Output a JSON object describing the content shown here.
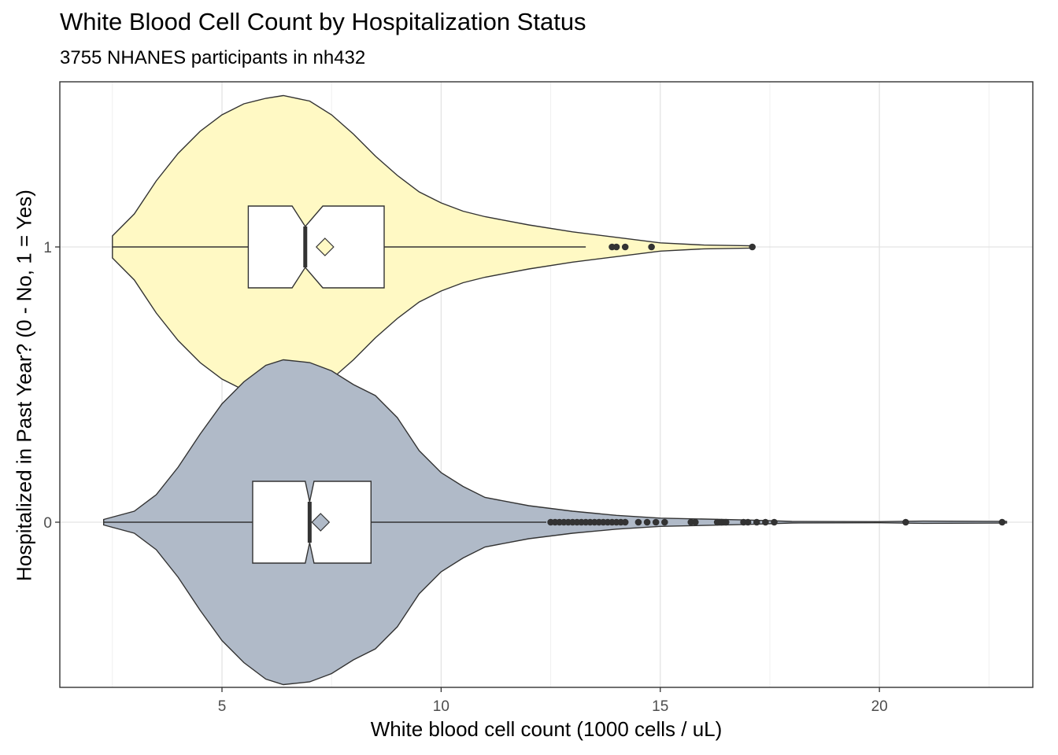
{
  "chart_data": {
    "type": "violin",
    "title": "White Blood Cell Count by Hospitalization Status",
    "subtitle": "3755 NHANES participants in nh432",
    "xlabel": "White blood cell count (1000 cells / uL)",
    "ylabel": "Hospitalized in Past Year? (0 - No, 1 = Yes)",
    "xlim": [
      1.3,
      23.5
    ],
    "ylim": [
      -0.6,
      1.6
    ],
    "xticks": [
      5,
      10,
      15,
      20
    ],
    "yticks": [
      0,
      1
    ],
    "grid": true,
    "legend": "none",
    "groups": [
      {
        "category": "1",
        "y": 1,
        "fill": "#FFF9C4",
        "violin": [
          [
            2.5,
            0.04
          ],
          [
            3.0,
            0.12
          ],
          [
            3.5,
            0.24
          ],
          [
            4.0,
            0.34
          ],
          [
            4.5,
            0.42
          ],
          [
            5.0,
            0.48
          ],
          [
            5.5,
            0.52
          ],
          [
            6.0,
            0.54
          ],
          [
            6.4,
            0.55
          ],
          [
            7.0,
            0.53
          ],
          [
            7.5,
            0.48
          ],
          [
            8.0,
            0.41
          ],
          [
            8.5,
            0.33
          ],
          [
            9.0,
            0.26
          ],
          [
            9.5,
            0.2
          ],
          [
            10.0,
            0.16
          ],
          [
            10.5,
            0.13
          ],
          [
            11.0,
            0.11
          ],
          [
            12.0,
            0.08
          ],
          [
            13.0,
            0.055
          ],
          [
            14.0,
            0.035
          ],
          [
            15.0,
            0.015
          ],
          [
            16.0,
            0.007
          ],
          [
            17.1,
            0.004
          ]
        ],
        "q1": 5.6,
        "median": 6.9,
        "q3": 8.7,
        "notch": [
          6.6,
          7.3
        ],
        "mean": 7.35,
        "whisker_low": 2.5,
        "whisker_high": 13.3,
        "outliers": [
          13.9,
          14.0,
          14.2,
          14.8,
          17.1
        ]
      },
      {
        "category": "0",
        "y": 0,
        "fill": "#B0BAC8",
        "violin": [
          [
            2.3,
            0.01
          ],
          [
            3.0,
            0.04
          ],
          [
            3.5,
            0.1
          ],
          [
            4.0,
            0.2
          ],
          [
            4.5,
            0.32
          ],
          [
            5.0,
            0.43
          ],
          [
            5.5,
            0.51
          ],
          [
            6.0,
            0.57
          ],
          [
            6.4,
            0.59
          ],
          [
            7.0,
            0.58
          ],
          [
            7.5,
            0.55
          ],
          [
            8.0,
            0.5
          ],
          [
            8.5,
            0.46
          ],
          [
            9.0,
            0.38
          ],
          [
            9.5,
            0.26
          ],
          [
            10.0,
            0.18
          ],
          [
            10.5,
            0.13
          ],
          [
            11.0,
            0.09
          ],
          [
            12.0,
            0.06
          ],
          [
            13.0,
            0.04
          ],
          [
            14.0,
            0.025
          ],
          [
            15.0,
            0.015
          ],
          [
            17.0,
            0.008
          ],
          [
            18.0,
            0.003
          ],
          [
            20.0,
            0.002
          ],
          [
            21.0,
            0.004
          ],
          [
            22.9,
            0.003
          ]
        ],
        "q1": 5.7,
        "median": 7.0,
        "q3": 8.4,
        "notch": [
          6.9,
          7.1
        ],
        "mean": 7.25,
        "whisker_low": 2.3,
        "whisker_high": 12.4,
        "outliers": [
          12.5,
          12.6,
          12.7,
          12.8,
          12.9,
          13.0,
          13.1,
          13.2,
          13.3,
          13.4,
          13.5,
          13.6,
          13.7,
          13.8,
          13.9,
          14.0,
          14.1,
          14.2,
          14.5,
          14.7,
          14.9,
          15.1,
          15.7,
          15.8,
          16.3,
          16.4,
          16.5,
          16.9,
          17.0,
          17.2,
          17.4,
          17.6,
          20.6,
          22.8
        ]
      }
    ]
  }
}
